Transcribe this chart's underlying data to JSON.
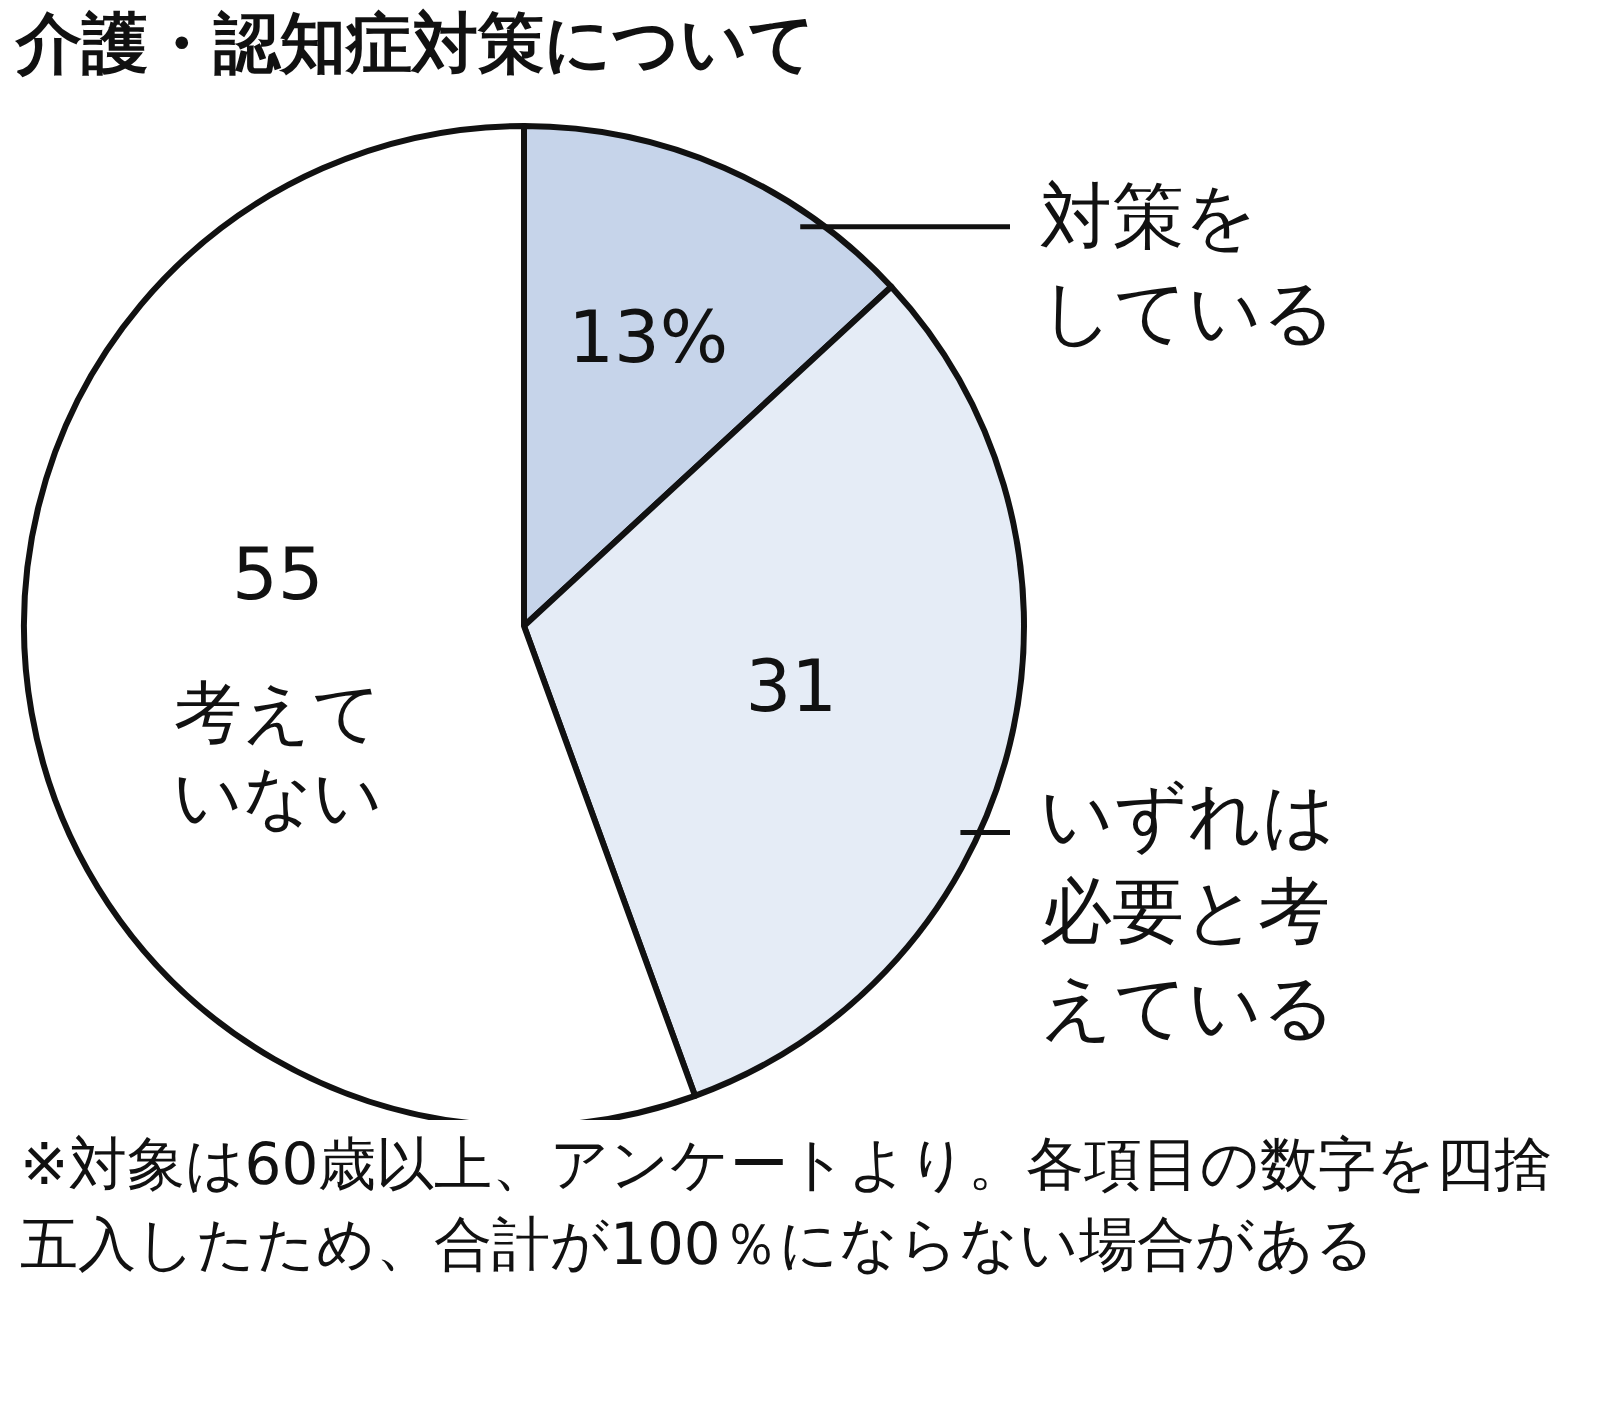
{
  "chart_data": {
    "type": "pie",
    "title": "介護・認知症対策について",
    "categories": [
      "対策をしている",
      "いずれは必要と考えている",
      "考えていない"
    ],
    "values": [
      13,
      31,
      55
    ],
    "value_labels": [
      "13%",
      "31",
      "55"
    ],
    "colors": [
      "#c6d4ea",
      "#e5ecf6",
      "#ffffff"
    ],
    "annotations": [
      "※対象は60歳以上、アンケートより。各項目の数字を四捨五入したため、合計が100％にならない場合がある"
    ]
  }
}
